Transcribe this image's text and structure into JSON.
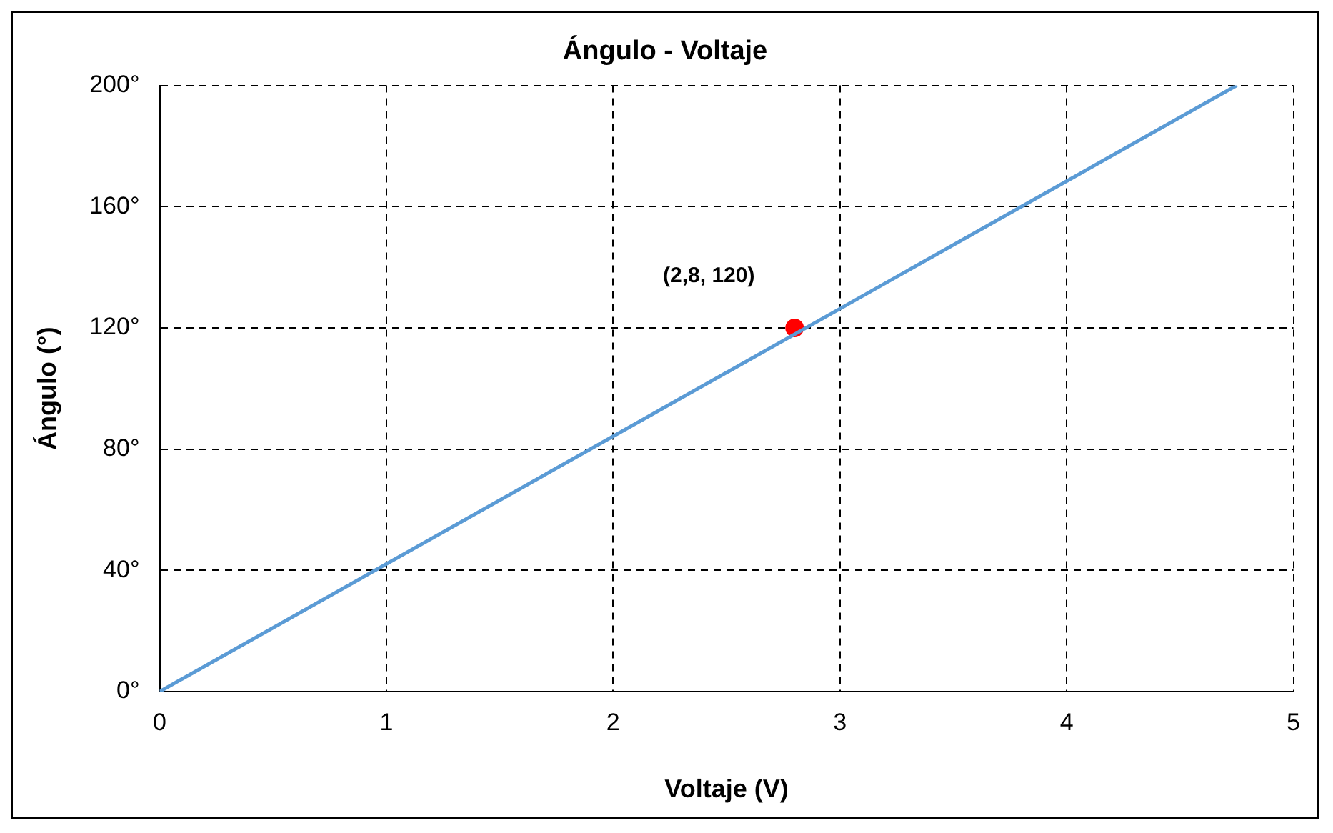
{
  "chart_data": {
    "type": "line",
    "title": "Ángulo - Voltaje",
    "xlabel": "Voltaje (V)",
    "ylabel": "Ángulo (°)",
    "series": [
      {
        "color": "#5b9bd5",
        "x": [
          0,
          4.75
        ],
        "values": [
          0,
          200
        ],
        "marker": "none"
      },
      {
        "type": "scatter",
        "color": "#ff0000",
        "x": [
          2.8
        ],
        "values": [
          120
        ],
        "marker": "circle"
      }
    ],
    "annotations": [
      {
        "text": "(2,8, 120)",
        "x": 2.8,
        "y": 120
      }
    ],
    "xlim": [
      0,
      5
    ],
    "xticks": [
      0,
      1,
      2,
      3,
      4,
      5
    ],
    "ylim": [
      0,
      200
    ],
    "yticks": [
      {
        "value": 0,
        "label": "0°"
      },
      {
        "value": 40,
        "label": "40°"
      },
      {
        "value": 80,
        "label": "80°"
      },
      {
        "value": 120,
        "label": "120°"
      },
      {
        "value": 160,
        "label": "160°"
      },
      {
        "value": 200,
        "label": "200°"
      }
    ],
    "grid": true,
    "legend": false,
    "line_style": "solid"
  }
}
